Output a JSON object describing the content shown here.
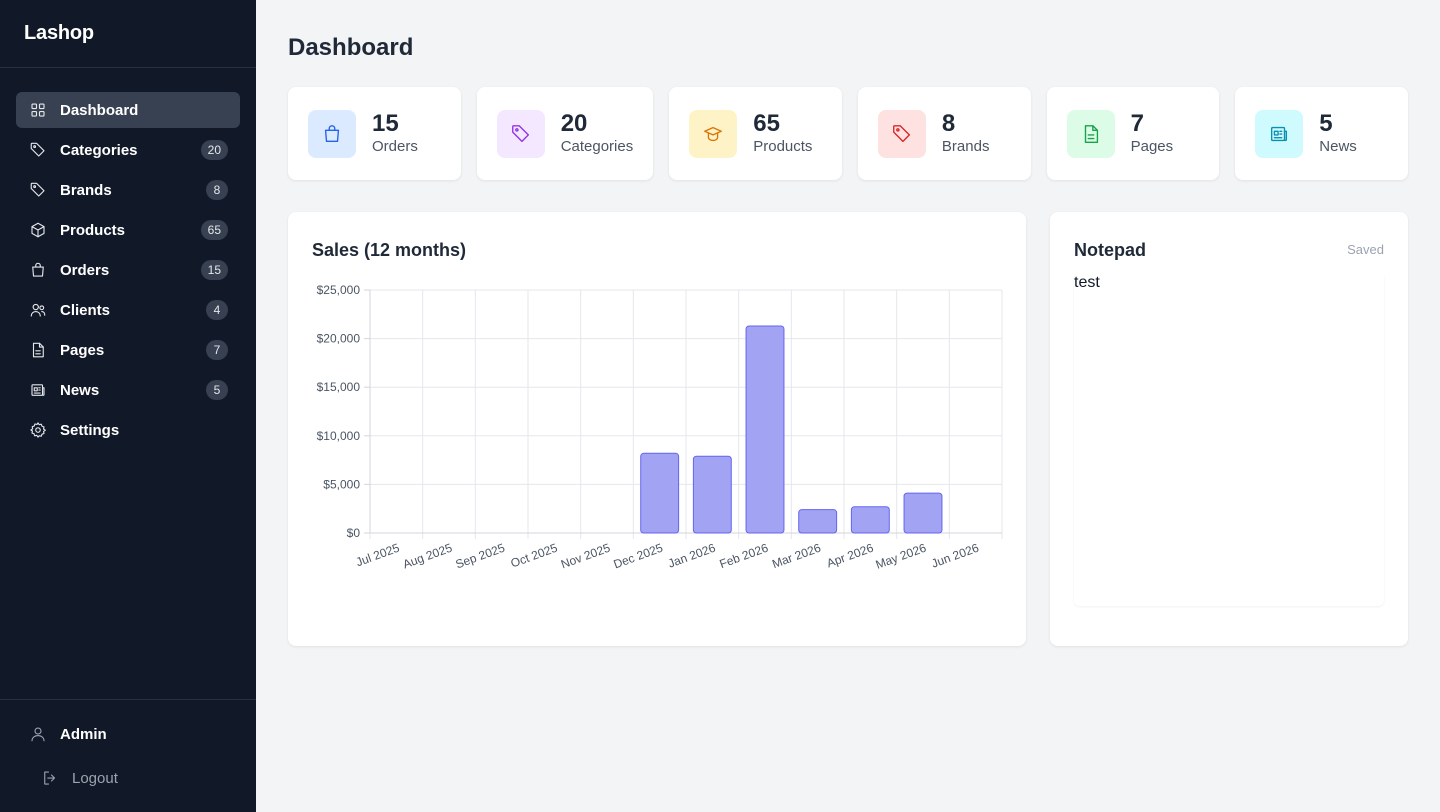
{
  "app": {
    "title": "Lashop"
  },
  "sidebar": {
    "items": [
      {
        "label": "Dashboard",
        "icon": "grid-icon",
        "count": null,
        "active": true
      },
      {
        "label": "Categories",
        "icon": "tag-icon",
        "count": "20"
      },
      {
        "label": "Brands",
        "icon": "tag-icon",
        "count": "8"
      },
      {
        "label": "Products",
        "icon": "cube-icon",
        "count": "65"
      },
      {
        "label": "Orders",
        "icon": "shopping-bag-icon",
        "count": "15"
      },
      {
        "label": "Clients",
        "icon": "users-icon",
        "count": "4"
      },
      {
        "label": "Pages",
        "icon": "document-icon",
        "count": "7"
      },
      {
        "label": "News",
        "icon": "newspaper-icon",
        "count": "5"
      },
      {
        "label": "Settings",
        "icon": "gear-icon",
        "count": null
      }
    ],
    "user": {
      "label": "Admin"
    },
    "logout": {
      "label": "Logout"
    }
  },
  "header": {
    "title": "Dashboard"
  },
  "stats": [
    {
      "value": "15",
      "label": "Orders",
      "bg": "#dbeafe",
      "color": "#2563eb"
    },
    {
      "value": "20",
      "label": "Categories",
      "bg": "#f3e8ff",
      "color": "#9333ea"
    },
    {
      "value": "65",
      "label": "Products",
      "bg": "#fef3c7",
      "color": "#d97706"
    },
    {
      "value": "8",
      "label": "Brands",
      "bg": "#fee2e2",
      "color": "#dc2626"
    },
    {
      "value": "7",
      "label": "Pages",
      "bg": "#dcfce7",
      "color": "#16a34a"
    },
    {
      "value": "5",
      "label": "News",
      "bg": "#cffafe",
      "color": "#0891b2"
    }
  ],
  "notepad": {
    "title": "Notepad",
    "status": "Saved",
    "content": "test"
  },
  "chart_data": {
    "type": "bar",
    "title": "Sales (12 months)",
    "categories": [
      "Jul 2025",
      "Aug 2025",
      "Sep 2025",
      "Oct 2025",
      "Nov 2025",
      "Dec 2025",
      "Jan 2026",
      "Feb 2026",
      "Mar 2026",
      "Apr 2026",
      "May 2026",
      "Jun 2026"
    ],
    "values": [
      0,
      0,
      0,
      0,
      0,
      8200,
      7900,
      21300,
      2400,
      2700,
      4100,
      0
    ],
    "ylim": [
      0,
      25000
    ],
    "yticks": [
      "$0",
      "$5,000",
      "$10,000",
      "$15,000",
      "$20,000",
      "$25,000"
    ],
    "grid": true,
    "colors": {
      "bar_fill": "#a3a3f3",
      "bar_stroke": "#6366f1",
      "grid": "#e5e7eb"
    }
  }
}
